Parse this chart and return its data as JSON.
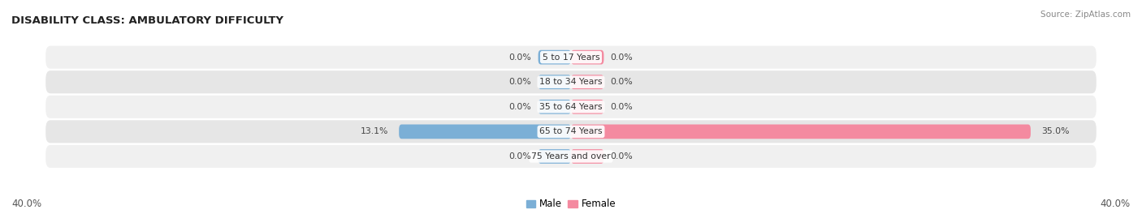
{
  "title": "DISABILITY CLASS: AMBULATORY DIFFICULTY",
  "source": "Source: ZipAtlas.com",
  "categories": [
    "5 to 17 Years",
    "18 to 34 Years",
    "35 to 64 Years",
    "65 to 74 Years",
    "75 Years and over"
  ],
  "male_values": [
    0.0,
    0.0,
    0.0,
    13.1,
    0.0
  ],
  "female_values": [
    0.0,
    0.0,
    0.0,
    35.0,
    0.0
  ],
  "max_val": 40.0,
  "stub_val": 2.5,
  "male_color": "#7bafd6",
  "female_color": "#f48aa0",
  "row_bg_light": "#f0f0f0",
  "row_bg_dark": "#e6e6e6",
  "label_color": "#444444",
  "title_color": "#222222",
  "source_color": "#888888",
  "axis_label_color": "#666666",
  "figsize": [
    14.06,
    2.69
  ],
  "dpi": 100
}
